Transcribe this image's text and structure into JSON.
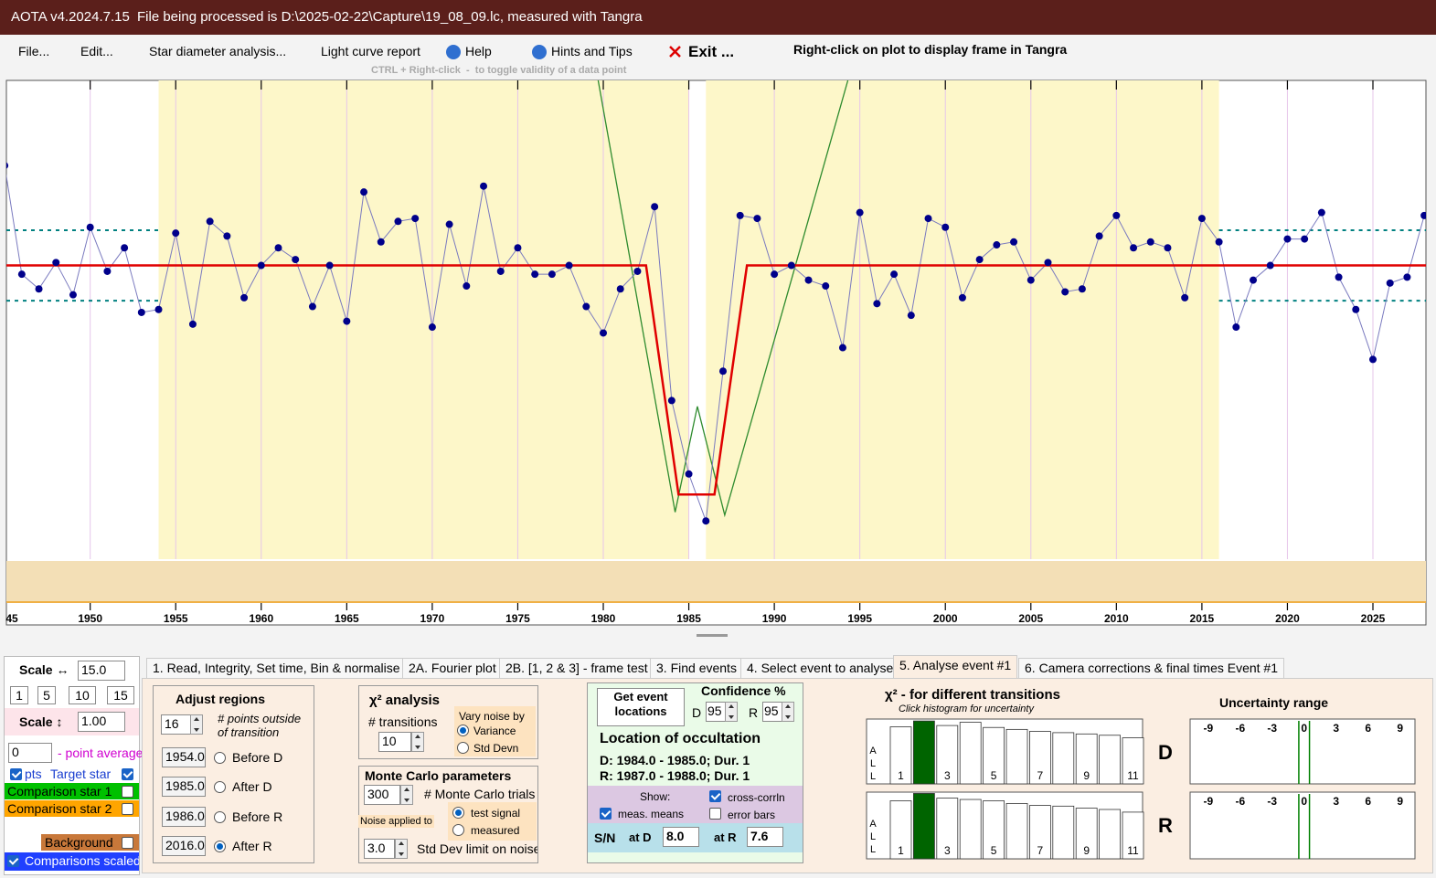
{
  "window": {
    "title": "AOTA v4.2024.7.15",
    "file_info": "File being processed is D:\\2025-02-22\\Capture\\19_08_09.lc, measured with Tangra"
  },
  "menu": [
    "File...",
    "Edit...",
    "Star diameter analysis...",
    "Light curve report",
    "Help",
    "Hints and Tips",
    "Exit ..."
  ],
  "hints": {
    "right_click": "Right-click on plot to display frame in Tangra",
    "ctrl": "CTRL + Right-click  -  to toggle validity of a data point"
  },
  "chart_data": {
    "type": "line",
    "x": [
      1945,
      1946,
      1947,
      1948,
      1949,
      1950,
      1951,
      1952,
      1953,
      1954,
      1955,
      1956,
      1957,
      1958,
      1959,
      1960,
      1961,
      1962,
      1963,
      1964,
      1965,
      1966,
      1967,
      1968,
      1969,
      1970,
      1971,
      1972,
      1973,
      1974,
      1975,
      1976,
      1977,
      1978,
      1979,
      1980,
      1981,
      1982,
      1983,
      1984,
      1985,
      1986,
      1987,
      1988,
      1989,
      1990,
      1991,
      1992,
      1993,
      1994,
      1995,
      1996,
      1997,
      1998,
      1999,
      2000,
      2001,
      2002,
      2003,
      2004,
      2005,
      2006,
      2007,
      2008,
      2009,
      2010,
      2011,
      2012,
      2013,
      2014,
      2015,
      2016,
      2017,
      2018,
      2019,
      2020,
      2021,
      2022,
      2023,
      2024,
      2025,
      2026,
      2027,
      2028
    ],
    "series": [
      {
        "name": "Target star",
        "color": "#00008b",
        "line_color": "#7a7abf",
        "values": [
          134,
          97,
          92,
          101,
          90,
          113,
          98,
          106,
          84,
          85,
          111,
          80,
          115,
          110,
          89,
          100,
          106,
          102,
          86,
          100,
          81,
          125,
          108,
          115,
          116,
          79,
          114,
          93,
          127,
          98,
          106,
          97,
          97,
          100,
          86,
          77,
          92,
          98,
          120,
          54,
          29,
          13,
          64,
          117,
          116,
          97,
          100,
          95,
          93,
          72,
          118,
          87,
          97,
          83,
          116,
          113,
          89,
          102,
          107,
          108,
          95,
          101,
          91,
          92,
          110,
          117,
          106,
          108,
          106,
          89,
          116,
          108,
          79,
          95,
          100,
          109,
          109,
          118,
          96,
          85,
          68,
          94,
          96,
          117
        ]
      }
    ],
    "model": {
      "color": "#e00000",
      "x": [
        1945.1,
        1982.5,
        1984.4,
        1986.5,
        1988.4,
        2028.1
      ],
      "values": [
        100,
        100,
        22,
        22,
        100,
        100
      ]
    },
    "chi2_curve": {
      "color": "#2e8b2e",
      "x": [
        1979.7,
        1984.2,
        1985.5,
        1987.1,
        1994.3
      ],
      "values": [
        163,
        16,
        52,
        15,
        163
      ]
    },
    "sigma_lines": {
      "color": "#008080",
      "values": [
        112,
        88
      ]
    },
    "xlim": [
      1945.1,
      2028.1
    ],
    "ylim": [
      0,
      163
    ],
    "xticks": [
      {
        "value": 1945,
        "label": "45"
      },
      1950,
      1955,
      1960,
      1965,
      1970,
      1975,
      1980,
      1985,
      1990,
      1995,
      2000,
      2005,
      2010,
      2015,
      2020,
      2025
    ],
    "grid": true
  },
  "display": {
    "scale_h_label": "Scale ↔",
    "scale_h": "15.0",
    "scale_buttons": [
      "1",
      "5",
      "10",
      "15"
    ],
    "scale_v_label": "Scale ↕",
    "scale_v": "1.00",
    "point_average": "0",
    "point_average_label": "- point average",
    "pts": "pts",
    "target_star": "Target star",
    "comp1": "Comparison star 1",
    "comp2": "Comparison star 2",
    "background": "Background",
    "comparisons_scaled": "Comparisons scaled"
  },
  "tabs": [
    "1.  Read, Integrity, Set time, Bin & normalise",
    "2A. Fourier plot",
    "2B. [1, 2 & 3] - frame test",
    "3. Find events",
    "4. Select event to analyse",
    "5. Analyse event #1",
    "6. Camera corrections & final times Event #1"
  ],
  "adjust_regions": {
    "title": "Adjust regions",
    "points": "16",
    "points_label": "# points outside of transition",
    "regions": [
      {
        "value": "1954.0",
        "label": "Before D"
      },
      {
        "value": "1985.0",
        "label": "After D"
      },
      {
        "value": "1986.0",
        "label": "Before R"
      },
      {
        "value": "2016.0",
        "label": "After R"
      }
    ]
  },
  "chi2": {
    "title": "χ² analysis",
    "transitions_label": "# transitions",
    "transitions": "10",
    "vary_noise_label": "Vary noise by",
    "options": [
      "Variance",
      "Std Devn"
    ]
  },
  "monte_carlo": {
    "title": "Monte Carlo parameters",
    "trials": "300",
    "trials_label": "# Monte Carlo trials",
    "noise_applied_label": "Noise applied to",
    "options": [
      "test signal",
      "measured"
    ],
    "std_dev": "3.0",
    "std_dev_label": "Std Dev limit on noise"
  },
  "event": {
    "button": "Get event locations",
    "confidence_label": "Confidence %",
    "d_label": "D",
    "d_conf": "95",
    "r_label": "R",
    "r_conf": "95",
    "location_title": "Location of occultation",
    "d_location": "D: 1984.0 - 1985.0; Dur. 1",
    "r_location": "R: 1987.0 - 1988.0; Dur. 1",
    "show_label": "Show:",
    "meas_means": "meas. means",
    "cross_corr": "cross-corrln",
    "error_bars": "error bars",
    "sn_label": "S/N",
    "at_d": "at D",
    "sn_d": "8.0",
    "at_r": "at R",
    "sn_r": "7.6"
  },
  "histograms": {
    "title": "χ² - for different transitions",
    "subtitle": "Click histogram for uncertainty",
    "axis_letters": [
      "A",
      "L",
      "L"
    ],
    "categories": [
      "1",
      null,
      "3",
      null,
      "5",
      null,
      "7",
      null,
      "9",
      null,
      "11"
    ],
    "ylim": [
      0,
      100
    ],
    "selected": 1,
    "color": "#ffffff",
    "selected_color": "#006400",
    "panels": [
      {
        "label": "D",
        "values": [
          88,
          97,
          90,
          95,
          87,
          84,
          81,
          79,
          77,
          75,
          71
        ]
      },
      {
        "label": "R",
        "values": [
          87,
          98,
          91,
          89,
          87,
          83,
          80,
          79,
          76,
          74,
          70
        ]
      }
    ]
  },
  "uncertainty": {
    "title": "Uncertainty range",
    "xlim": [
      -10.7,
      10.4
    ],
    "xticks": [
      -9,
      -6,
      -3,
      0,
      3,
      6,
      9
    ],
    "range": [
      -0.5,
      0.5
    ],
    "color": "#008000"
  }
}
